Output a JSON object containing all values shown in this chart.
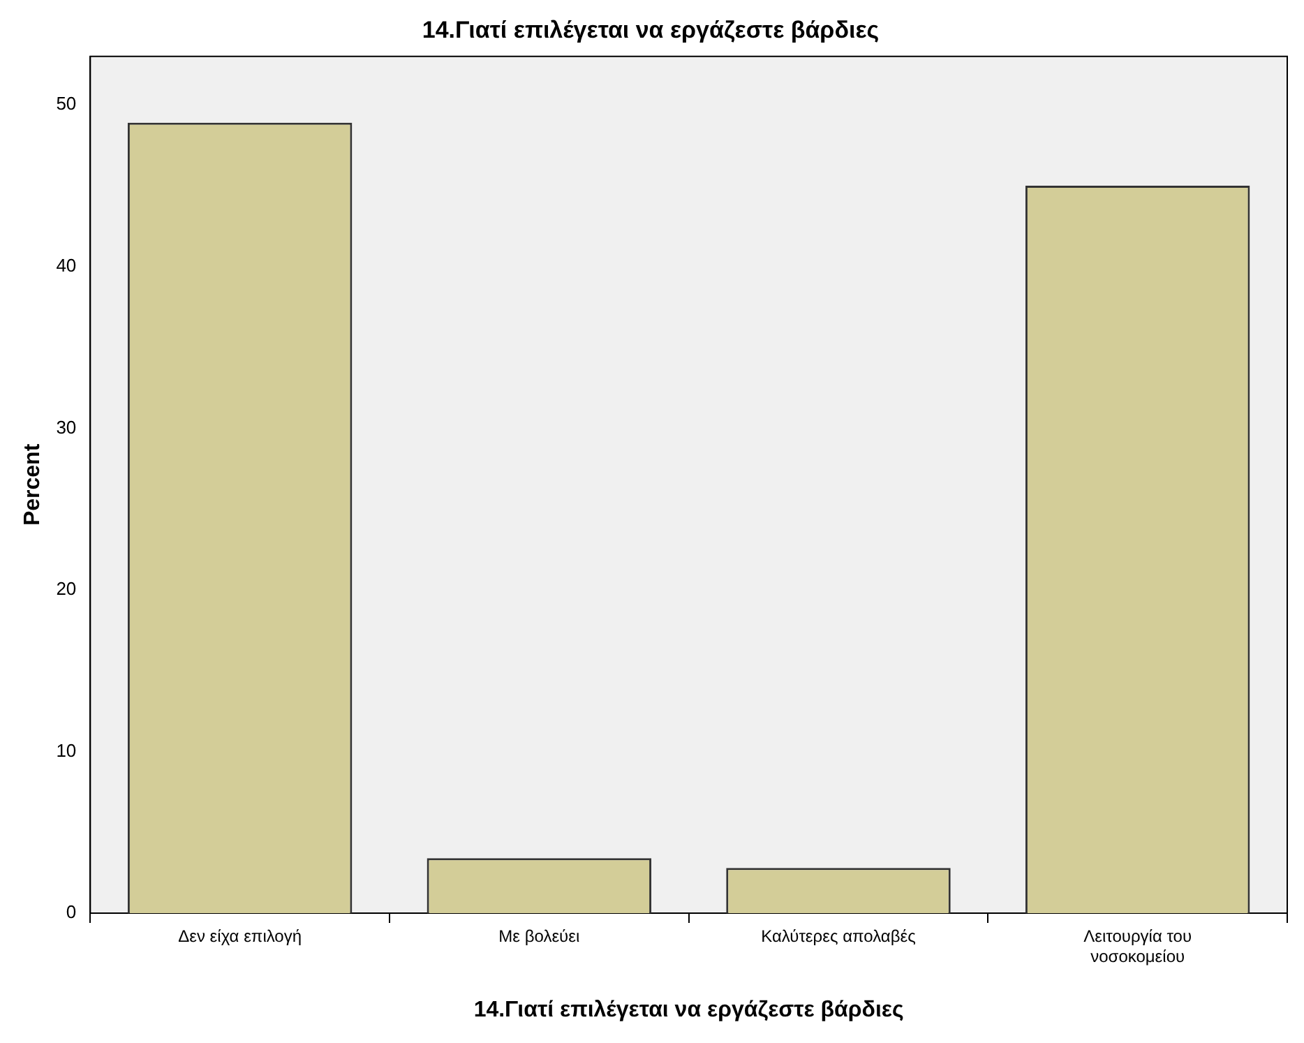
{
  "chart_data": {
    "type": "bar",
    "title": "14.Γιατί επιλέγεται να εργάζεστε βάρδιες",
    "xlabel": "14.Γιατί επιλέγεται να εργάζεστε βάρδιες",
    "ylabel": "Percent",
    "categories": [
      "Δεν είχα επιλογή",
      "Με βολεύει",
      "Καλύτερες απολαβές",
      "Λειτουργία του νοσοκομείου"
    ],
    "values": [
      48.9,
      3.4,
      2.8,
      45.0
    ],
    "color": "#d3cd98",
    "ylim": [
      0,
      53
    ],
    "yticks": [
      0,
      10,
      20,
      30,
      40,
      50
    ],
    "grid": false,
    "legend": false
  }
}
